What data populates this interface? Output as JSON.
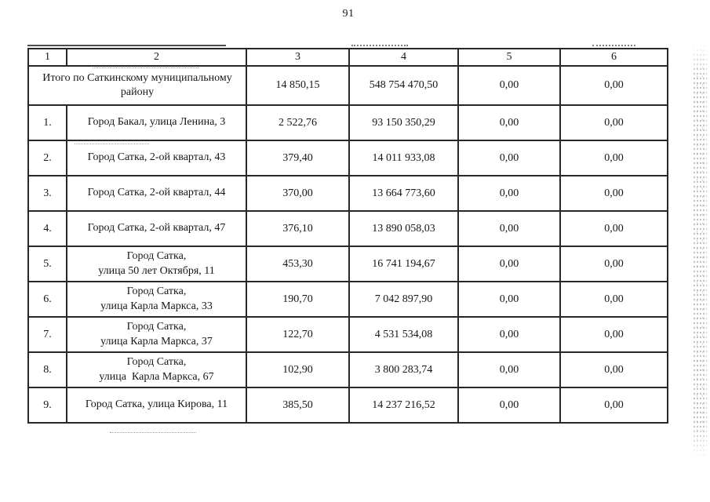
{
  "page": {
    "number": "91"
  },
  "table": {
    "header": [
      "1",
      "2",
      "3",
      "4",
      "5",
      "6"
    ],
    "total_row": {
      "label": "Итого по Саткинскому муниципальному\nрайону",
      "col3": "14 850,15",
      "col4": "548 754 470,50",
      "col5": "0,00",
      "col6": "0,00"
    },
    "rows": [
      {
        "num": "1.",
        "address": "Город Бакал, улица Ленина, 3",
        "col3": "2 522,76",
        "col4": "93 150 350,29",
        "col5": "0,00",
        "col6": "0,00"
      },
      {
        "num": "2.",
        "address": "Город Сатка, 2-ой квартал, 43",
        "col3": "379,40",
        "col4": "14 011 933,08",
        "col5": "0,00",
        "col6": "0,00"
      },
      {
        "num": "3.",
        "address": "Город Сатка, 2-ой квартал, 44",
        "col3": "370,00",
        "col4": "13 664 773,60",
        "col5": "0,00",
        "col6": "0,00"
      },
      {
        "num": "4.",
        "address": "Город Сатка, 2-ой квартал, 47",
        "col3": "376,10",
        "col4": "13 890 058,03",
        "col5": "0,00",
        "col6": "0,00"
      },
      {
        "num": "5.",
        "address": "Город Сатка,\nулица 50 лет Октября, 11",
        "col3": "453,30",
        "col4": "16 741 194,67",
        "col5": "0,00",
        "col6": "0,00"
      },
      {
        "num": "6.",
        "address": "Город Сатка,\nулица Карла Маркса, 33",
        "col3": "190,70",
        "col4": "7 042 897,90",
        "col5": "0,00",
        "col6": "0,00"
      },
      {
        "num": "7.",
        "address": "Город Сатка,\nулица Карла Маркса, 37",
        "col3": "122,70",
        "col4": "4 531 534,08",
        "col5": "0,00",
        "col6": "0,00"
      },
      {
        "num": "8.",
        "address": "Город Сатка,\nулица  Карла Маркса, 67",
        "col3": "102,90",
        "col4": "3 800 283,74",
        "col5": "0,00",
        "col6": "0,00"
      },
      {
        "num": "9.",
        "address": "Город Сатка, улица Кирова, 11",
        "col3": "385,50",
        "col4": "14 237 216,52",
        "col5": "0,00",
        "col6": "0,00"
      }
    ]
  }
}
